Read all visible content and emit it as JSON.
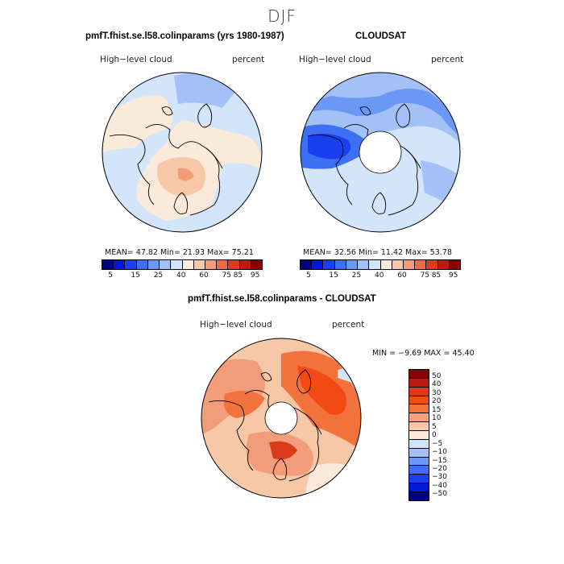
{
  "figure": {
    "season": "DJF"
  },
  "panels": {
    "model": {
      "title": "pmfT.fhist.se.l58.colinparams (yrs 1980-1987)",
      "left_label": "High−level cloud",
      "right_label": "percent",
      "stats": "MEAN=  47.82   Min=  21.93   Max=  75.21"
    },
    "obs": {
      "title": "CLOUDSAT",
      "left_label": "High−level cloud",
      "right_label": "percent",
      "stats": "MEAN=  32.56   Min=  11.42   Max=  53.78"
    },
    "diff": {
      "title": "pmfT.fhist.se.l58.colinparams - CLOUDSAT",
      "left_label": "High−level cloud",
      "right_label": "percent",
      "stats": "MIN =   −9.69  MAX =   45.40"
    }
  },
  "colorbars": {
    "abs_ticks": [
      "5",
      "15",
      "25",
      "40",
      "60",
      "75",
      "85",
      "95"
    ],
    "diff_ticks": [
      "50",
      "40",
      "30",
      "20",
      "15",
      "10",
      "5",
      "0",
      "−5",
      "−10",
      "−15",
      "−20",
      "−30",
      "−40",
      "−50"
    ]
  },
  "colors": {
    "abs_scale": [
      "#000080",
      "#0019d6",
      "#1a3fee",
      "#3d6ff5",
      "#6b97f7",
      "#a3c1f7",
      "#d2e5fb",
      "#fbe9d9",
      "#f7c8a8",
      "#f29d79",
      "#ec6b44",
      "#dc3a1d",
      "#bd1a10",
      "#8b0000"
    ],
    "diff_scale": [
      "#8b0000",
      "#bd1a10",
      "#dc3a1d",
      "#f24a12",
      "#f2723d",
      "#f4a27a",
      "#f7c8a8",
      "#fbe9d9",
      "#d2e5fb",
      "#a3c1f7",
      "#6b97f7",
      "#3d6ff5",
      "#1a3fee",
      "#0019d6",
      "#000080"
    ]
  },
  "chart_data": [
    {
      "type": "heatmap",
      "title": "pmfT.fhist.se.l58.colinparams (yrs 1980-1987)",
      "projection": "north polar stereographic",
      "variable": "High-level cloud",
      "units": "percent",
      "mean": 47.82,
      "min": 21.93,
      "max": 75.21,
      "levels": [
        5,
        10,
        15,
        20,
        25,
        30,
        40,
        50,
        60,
        70,
        75,
        80,
        85,
        90,
        95
      ]
    },
    {
      "type": "heatmap",
      "title": "CLOUDSAT",
      "projection": "north polar stereographic",
      "variable": "High-level cloud",
      "units": "percent",
      "mean": 32.56,
      "min": 11.42,
      "max": 53.78,
      "levels": [
        5,
        10,
        15,
        20,
        25,
        30,
        40,
        50,
        60,
        70,
        75,
        80,
        85,
        90,
        95
      ]
    },
    {
      "type": "heatmap",
      "title": "pmfT.fhist.se.l58.colinparams - CLOUDSAT",
      "projection": "north polar stereographic",
      "variable": "High-level cloud",
      "units": "percent",
      "min": -9.69,
      "max": 45.4,
      "levels": [
        -50,
        -40,
        -30,
        -20,
        -15,
        -10,
        -5,
        0,
        5,
        10,
        15,
        20,
        30,
        40,
        50
      ]
    }
  ]
}
